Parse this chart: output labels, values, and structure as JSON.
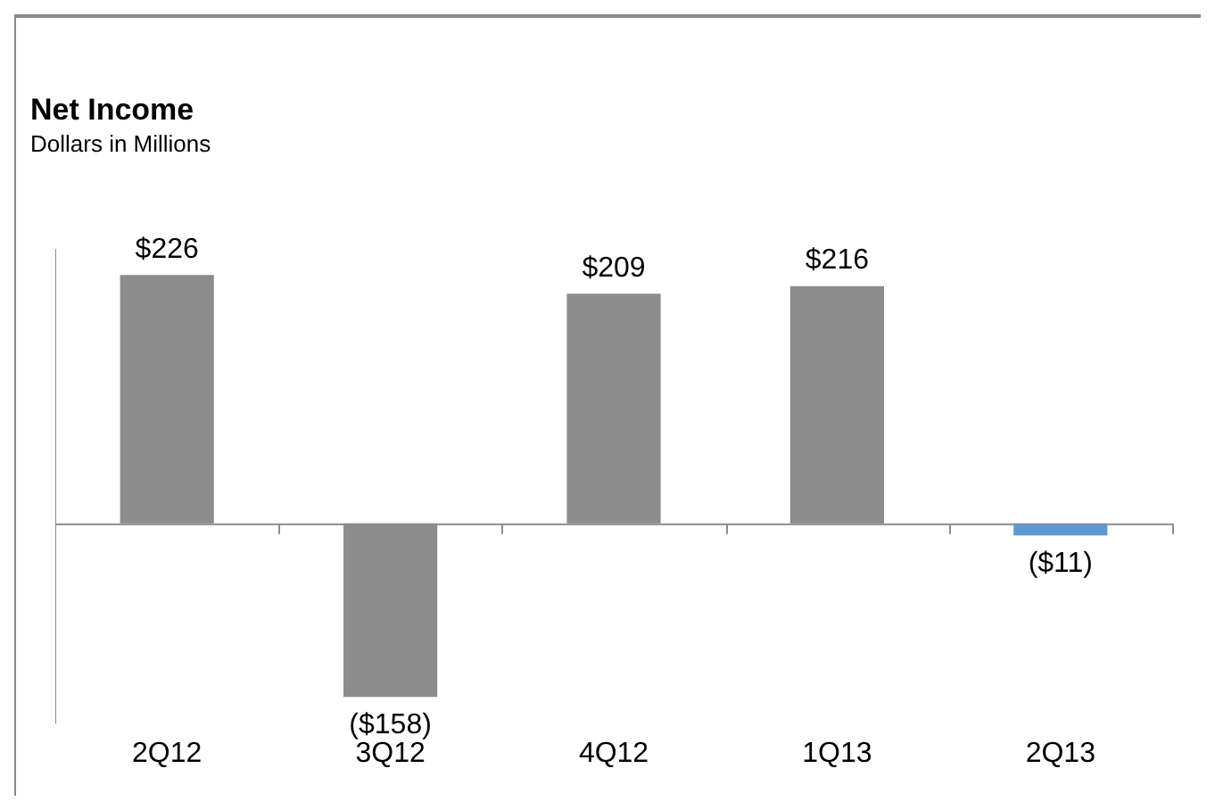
{
  "chart_data": {
    "type": "bar",
    "title": "Net Income",
    "subtitle": "Dollars in Millions",
    "categories": [
      "2Q12",
      "3Q12",
      "4Q12",
      "1Q13",
      "2Q13"
    ],
    "values": [
      226,
      -158,
      209,
      216,
      -11
    ],
    "colors": [
      "#8c8c8c",
      "#8c8c8c",
      "#8c8c8c",
      "#8c8c8c",
      "#5b9bd5"
    ],
    "value_labels": [
      "$226",
      "($158)",
      "$209",
      "$216",
      "($11)"
    ],
    "grid": false,
    "legend": false
  }
}
